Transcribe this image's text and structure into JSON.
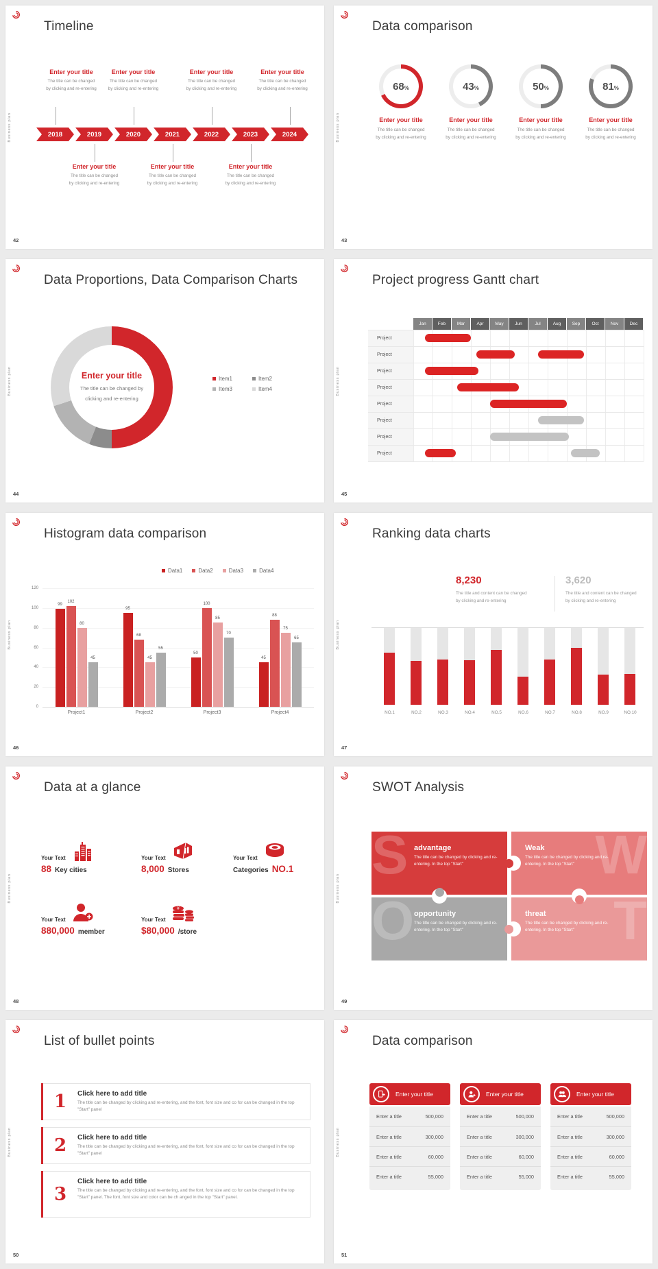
{
  "theme": {
    "accent": "#d1262b",
    "bar_red": "#dc2424",
    "bar_gray": "#c3c3c3",
    "ring_gray": "#7d7d7d",
    "track": "#ededed"
  },
  "brand": {
    "vertical_label": "Business plan"
  },
  "slides": {
    "timeline": {
      "number": "42",
      "title": "Timeline",
      "years": [
        "2018",
        "2019",
        "2020",
        "2021",
        "2022",
        "2023",
        "2024"
      ],
      "entry_title": "Enter your title",
      "entry_lines": [
        "The title can be changed",
        "by clicking and re-entering"
      ],
      "top_slots": [
        0,
        2,
        4,
        6
      ],
      "bottom_slots": [
        1,
        3,
        5
      ]
    },
    "data_comparison": {
      "number": "43",
      "title": "Data comparison",
      "entry_title": "Enter your title",
      "entry_lines": [
        "The title can be changed",
        "by clicking and re-entering"
      ]
    },
    "proportions": {
      "number": "44",
      "title": "Data Proportions, Data Comparison Charts",
      "center_title": "Enter your title",
      "center_lines": [
        "The title can be changed by",
        "clicking and re-entering"
      ]
    },
    "gantt": {
      "number": "45",
      "title": "Project progress Gantt chart"
    },
    "histogram": {
      "number": "46",
      "title": "Histogram data comparison"
    },
    "ranking": {
      "number": "47",
      "title": "Ranking data charts",
      "stat_red": {
        "value": "8,230",
        "lines": [
          "The title and content can be changed",
          "by clicking and re-entering"
        ]
      },
      "stat_gray": {
        "value": "3,620",
        "lines": [
          "The title and content can be changed",
          "by clicking and re-entering"
        ]
      }
    },
    "glance": {
      "number": "48",
      "title": "Data at a glance",
      "items": [
        {
          "label": "Your Text",
          "value": "88",
          "caption": "Key cities",
          "icon": "city-buildings-icon"
        },
        {
          "label": "Your Text",
          "value": "8,000",
          "caption": "Stores",
          "icon": "store-icon"
        },
        {
          "label": "Your Text",
          "value": "NO.1",
          "caption": "Categories",
          "icon": "category-cylinder-icon"
        },
        {
          "label": "Your Text",
          "value": "880,000",
          "caption": "member",
          "icon": "member-add-icon"
        },
        {
          "label": "Your Text",
          "value": "$80,000",
          "caption": "/store",
          "icon": "money-coins-icon"
        }
      ]
    },
    "swot": {
      "number": "49",
      "title": "SWOT Analysis",
      "pieces": [
        {
          "letter": "S",
          "title": "advantage",
          "body": "The title can be changed by clicking and re-entering. In the top \"Start\"",
          "color": "#d63c3c"
        },
        {
          "letter": "W",
          "title": "Weak",
          "body": "The title can be changed by clicking and re-entering. In the top \"Start\"",
          "color": "#e77c7c"
        },
        {
          "letter": "O",
          "title": "opportunity",
          "body": "The title can be changed by clicking and re-entering. In the top \"Start\"",
          "color": "#a8a8a8"
        },
        {
          "letter": "T",
          "title": "threat",
          "body": "The title can be changed by clicking and re-entering. In the top \"Start\"",
          "color": "#ea9999"
        }
      ]
    },
    "bullets": {
      "number": "50",
      "title": "List of bullet points",
      "items": [
        {
          "num": "1",
          "title": "Click here to add title",
          "body": "The title can be changed by clicking and re-entering, and the font, font size and co for can be changed in the top \"Start\" panel"
        },
        {
          "num": "2",
          "title": "Click here to add title",
          "body": "The title can be changed by clicking and re-entering, and the font, font size and co for can be changed in the top \"Start\" panel"
        },
        {
          "num": "3",
          "title": "Click here to add title",
          "body": "The title can be changed by clicking and re-entering, and the font, font size and co for can be changed in the top \"Start\" panel. The font, font size and color can be ch anged in the top \"Start\" panel."
        }
      ]
    },
    "tables": {
      "number": "51",
      "title": "Data comparison"
    }
  },
  "chart_data": [
    {
      "name": "progress_rings",
      "type": "pie",
      "title": "Data comparison",
      "unit": "%",
      "values": [
        68,
        43,
        50,
        81
      ],
      "colors": [
        "#d1262b",
        "#7d7d7d",
        "#7d7d7d",
        "#7d7d7d"
      ],
      "track_color": "#ededed"
    },
    {
      "name": "proportions_donut",
      "type": "pie",
      "title": "Data Proportions, Data Comparison Charts",
      "labels": [
        "Item1",
        "Item2",
        "Item3",
        "Item4"
      ],
      "values": [
        50,
        6,
        14,
        30
      ],
      "colors": [
        "#d1262b",
        "#8c8c8c",
        "#b3b3b3",
        "#d9d9d9"
      ],
      "legend_position": "right"
    },
    {
      "name": "gantt",
      "type": "table",
      "title": "Project progress Gantt chart",
      "months": [
        "Jan",
        "Feb",
        "Mar",
        "Apr",
        "May",
        "Jun",
        "Jul",
        "Aug",
        "Sep",
        "Oct",
        "Nov",
        "Dec"
      ],
      "row_label": "Project",
      "bar_unit": "month-index-0-12",
      "rows": [
        {
          "bars": [
            {
              "start": 0.6,
              "end": 3.0,
              "color": "red"
            }
          ]
        },
        {
          "bars": [
            {
              "start": 3.3,
              "end": 5.3,
              "color": "red"
            },
            {
              "start": 6.5,
              "end": 8.9,
              "color": "red"
            }
          ]
        },
        {
          "bars": [
            {
              "start": 0.6,
              "end": 3.4,
              "color": "red"
            }
          ]
        },
        {
          "bars": [
            {
              "start": 2.3,
              "end": 5.5,
              "color": "red"
            }
          ]
        },
        {
          "bars": [
            {
              "start": 4.0,
              "end": 8.0,
              "color": "red"
            }
          ]
        },
        {
          "bars": [
            {
              "start": 6.5,
              "end": 8.9,
              "color": "gray"
            }
          ]
        },
        {
          "bars": [
            {
              "start": 4.0,
              "end": 8.1,
              "color": "gray"
            }
          ]
        },
        {
          "bars": [
            {
              "start": 0.6,
              "end": 2.2,
              "color": "red"
            },
            {
              "start": 8.2,
              "end": 9.7,
              "color": "gray"
            }
          ]
        }
      ]
    },
    {
      "name": "histogram",
      "type": "bar",
      "title": "Histogram data comparison",
      "categories": [
        "Project1",
        "Project2",
        "Project3",
        "Project4"
      ],
      "y_ticks": [
        0,
        20,
        40,
        60,
        80,
        100,
        120
      ],
      "y_max": 120,
      "series": [
        {
          "name": "Data1",
          "color": "#c92121",
          "values": [
            99,
            95,
            50,
            45
          ]
        },
        {
          "name": "Data2",
          "color": "#d95353",
          "values": [
            102,
            68,
            100,
            88
          ]
        },
        {
          "name": "Data3",
          "color": "#e8a0a0",
          "values": [
            80,
            45,
            85,
            75
          ]
        },
        {
          "name": "Data4",
          "color": "#ababab",
          "values": [
            45,
            55,
            70,
            65
          ]
        }
      ]
    },
    {
      "name": "ranking",
      "type": "bar",
      "title": "Ranking data charts",
      "categories": [
        "NO.1",
        "NO.2",
        "NO.3",
        "NO.4",
        "NO.5",
        "NO.6",
        "NO.7",
        "NO.8",
        "NO.9",
        "NO.10"
      ],
      "fill_pct": [
        68,
        57,
        59,
        58,
        71,
        37,
        59,
        74,
        39,
        40
      ],
      "track_color": "#e6e6e6",
      "fill_color": "#d1262b"
    },
    {
      "name": "comparison_tables",
      "type": "table",
      "title": "Data comparison",
      "row_label": "Enter a title",
      "row_values": [
        "500,000",
        "300,000",
        "60,000",
        "55,000"
      ],
      "columns": [
        {
          "header": "Enter your title",
          "icon": "device-add-icon"
        },
        {
          "header": "Enter your title",
          "icon": "person-add-icon"
        },
        {
          "header": "Enter your title",
          "icon": "people-icon"
        }
      ]
    }
  ]
}
